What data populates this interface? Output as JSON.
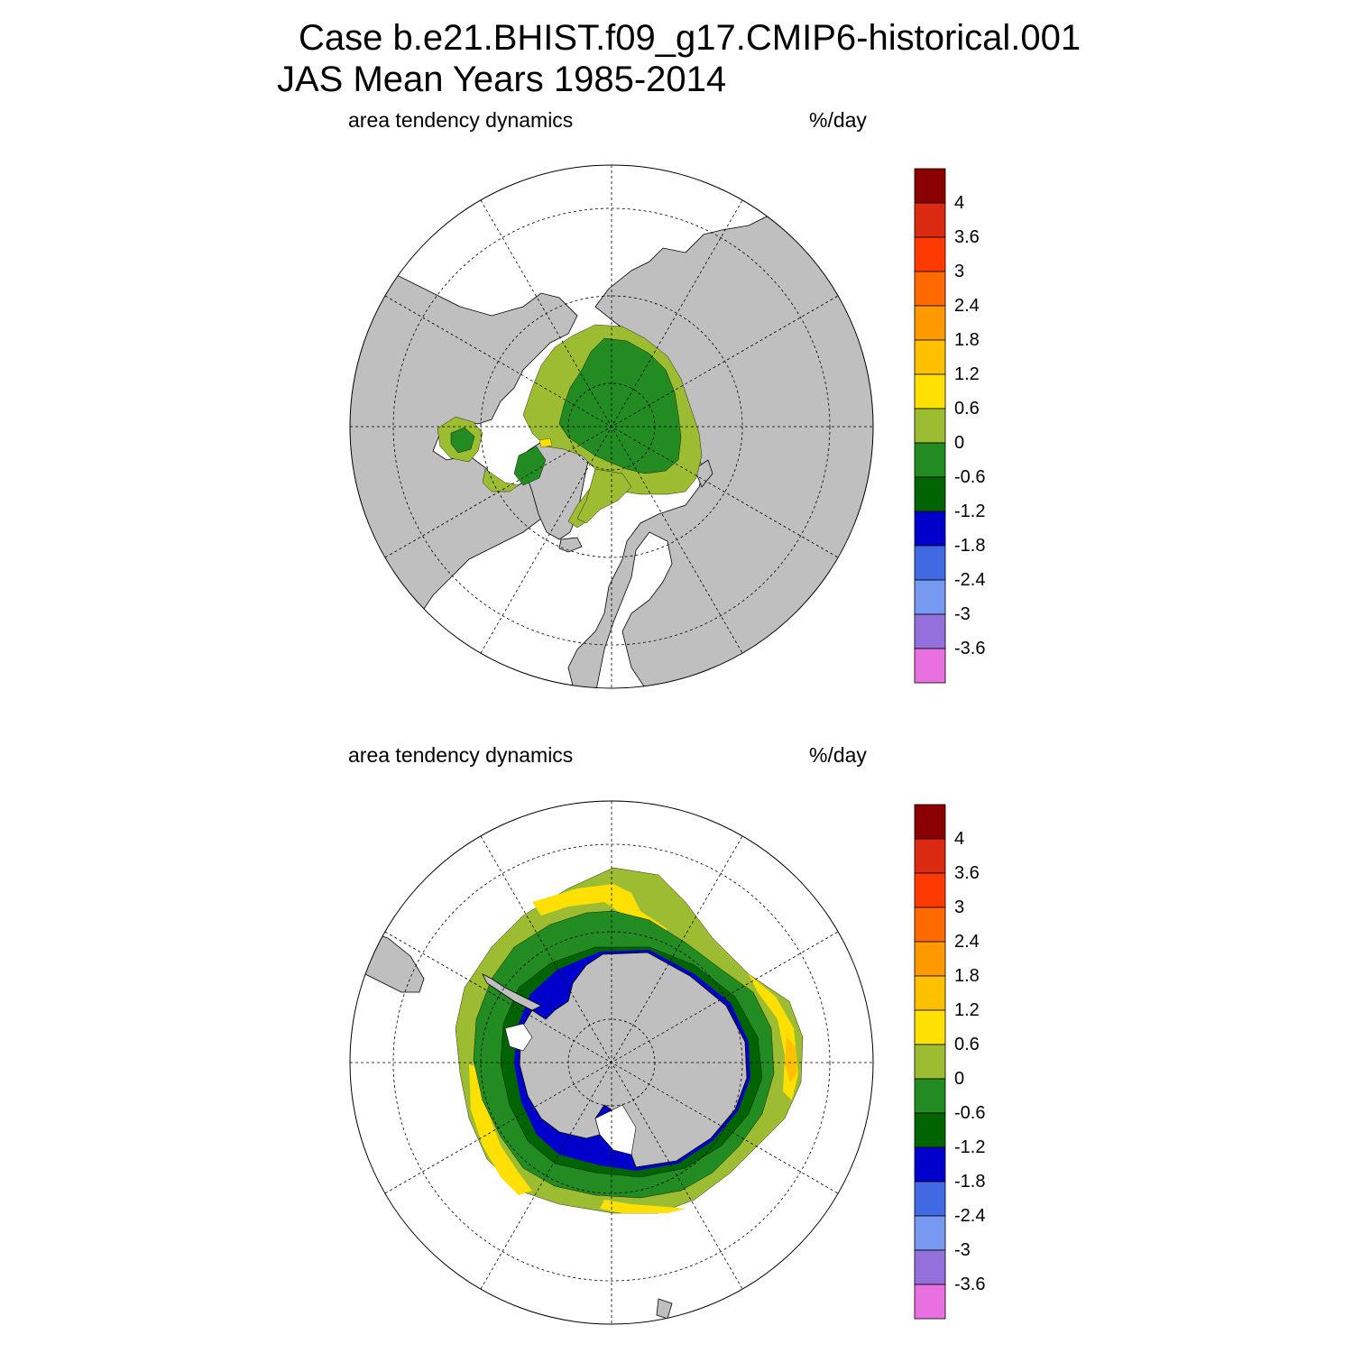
{
  "title": {
    "line1": "Case b.e21.BHIST.f09_g17.CMIP6-historical.001",
    "line2": "JAS Mean   Years 1985-2014"
  },
  "panels": [
    {
      "hemisphere": "north",
      "left_label": "area tendency dynamics",
      "right_label": "%/day"
    },
    {
      "hemisphere": "south",
      "left_label": "area tendency dynamics",
      "right_label": "%/day"
    }
  ],
  "colorbar": {
    "labels": [
      "4",
      "3.6",
      "3",
      "2.4",
      "1.8",
      "1.2",
      "0.6",
      "0",
      "-0.6",
      "-1.2",
      "-1.8",
      "-2.4",
      "-3",
      "-3.6"
    ],
    "colors": [
      "#8b0000",
      "#dc2a12",
      "#ff3a00",
      "#ff6a00",
      "#ff9900",
      "#ffc000",
      "#ffe000",
      "#9cbd32",
      "#228b22",
      "#006400",
      "#0000cd",
      "#4169e1",
      "#7799f0",
      "#9370db",
      "#e870e0"
    ]
  },
  "colors": {
    "land": "#bfbfbf",
    "ocean": "#ffffff"
  }
}
